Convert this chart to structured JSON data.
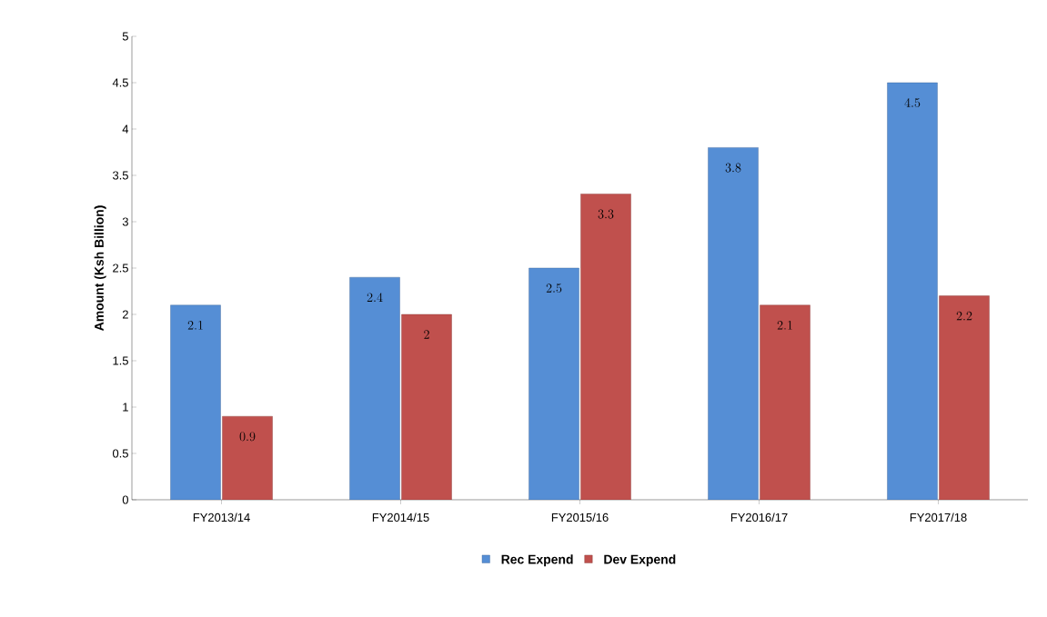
{
  "chart_data": {
    "type": "bar",
    "ylabel": "Amount (Ksh Billion)",
    "categories": [
      "FY2013/14",
      "FY2014/15",
      "FY2015/16",
      "FY2016/17",
      "FY2017/18"
    ],
    "series": [
      {
        "name": "Rec Expend",
        "color": "#558ed5",
        "values": [
          2.1,
          2.4,
          2.5,
          3.8,
          4.5
        ]
      },
      {
        "name": "Dev Expend",
        "color": "#c0504d",
        "values": [
          0.9,
          2,
          3.3,
          2.1,
          2.2
        ]
      }
    ],
    "ylim": [
      0,
      5
    ],
    "yticks": [
      0,
      0.5,
      1,
      1.5,
      2,
      2.5,
      3,
      3.5,
      4,
      4.5,
      5
    ],
    "data_labels": true,
    "grid": false,
    "legend": "bottom"
  }
}
